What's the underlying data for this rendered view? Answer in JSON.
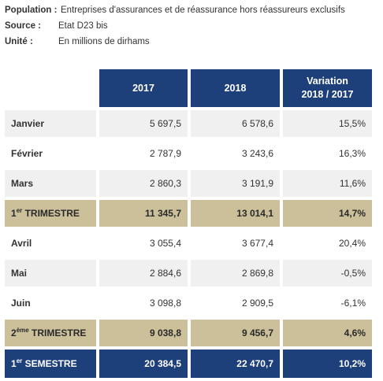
{
  "meta": {
    "population_label": "Population :",
    "population_value": "Entreprises d'assurances et de réassurance hors réassureurs exclusifs",
    "source_label": "Source :",
    "source_value": "Etat D23 bis",
    "unit_label": "Unité :",
    "unit_value": "En millions de dirhams"
  },
  "table": {
    "headers": [
      "2017",
      "2018",
      "Variation",
      "2018 / 2017"
    ],
    "rows": [
      {
        "label": "Janvier",
        "v2017": "5 697,5",
        "v2018": "6 578,6",
        "var": "15,5%"
      },
      {
        "label": "Février",
        "v2017": "2 787,9",
        "v2018": "3 243,6",
        "var": "16,3%"
      },
      {
        "label": "Mars",
        "v2017": "2 860,3",
        "v2018": "3 191,9",
        "var": "11,6%"
      },
      {
        "label_num": "1",
        "label_sup": "er",
        "label_text": "TRIMESTRE",
        "v2017": "11 345,7",
        "v2018": "13 014,1",
        "var": "14,7%"
      },
      {
        "label": "Avril",
        "v2017": "3 055,4",
        "v2018": "3 677,4",
        "var": "20,4%"
      },
      {
        "label": "Mai",
        "v2017": "2 884,6",
        "v2018": "2 869,8",
        "var": "-0,5%"
      },
      {
        "label": "Juin",
        "v2017": "3 098,8",
        "v2018": "2 909,5",
        "var": "-6,1%"
      },
      {
        "label_num": "2",
        "label_sup": "ème",
        "label_text": "TRIMESTRE",
        "v2017": "9 038,8",
        "v2018": "9 456,7",
        "var": "4,6%"
      },
      {
        "label_num": "1",
        "label_sup": "er",
        "label_text": "SEMESTRE",
        "v2017": "20 384,5",
        "v2018": "22 470,7",
        "var": "10,2%"
      }
    ]
  }
}
